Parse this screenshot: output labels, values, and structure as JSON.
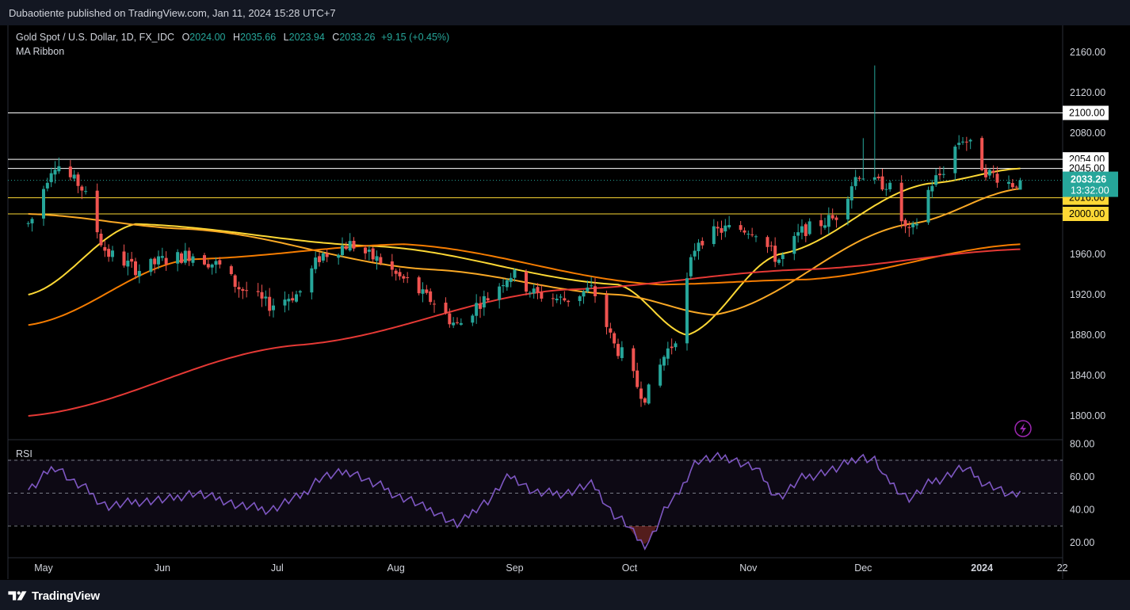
{
  "header": {
    "published": "Dubaotiente published on TradingView.com, Jan 11, 2024 15:28 UTC+7"
  },
  "legend": {
    "symbol": "Gold Spot / U.S. Dollar, 1D, FX_IDC",
    "open_label": "O",
    "open": "2024.00",
    "high_label": "H",
    "high": "2035.66",
    "low_label": "L",
    "low": "2023.94",
    "close_label": "C",
    "close": "2033.26",
    "change": "+9.15 (+0.45%)",
    "indicator": "MA Ribbon",
    "rsi_label": "RSI"
  },
  "price_badge": {
    "price": "2033.26",
    "countdown": "13:32:00"
  },
  "footer": {
    "brand": "TradingView"
  },
  "colors": {
    "up": "#26a69a",
    "down": "#ef5350",
    "ma20": "#fdd835",
    "ma50": "#f9a825",
    "ma100": "#f57c00",
    "ma200": "#e53935",
    "rsi": "#7e57c2",
    "bg": "#000000",
    "panel": "#131722"
  },
  "chart_data": [
    {
      "type": "candlestick",
      "title": "Gold Spot / U.S. Dollar, 1D, FX_IDC",
      "y_ticks": [
        1800,
        1840,
        1880,
        1920,
        1960,
        2000,
        2040,
        2080,
        2120,
        2160
      ],
      "y_tick_labels": [
        "1800.00",
        "1840.00",
        "1880.00",
        "1920.00",
        "1960.00",
        "2000.00",
        "2040.00",
        "2080.00",
        "2120.00",
        "2160.00"
      ],
      "x_tick_labels": [
        "May",
        "Jun",
        "Jul",
        "Aug",
        "Sep",
        "Oct",
        "Nov",
        "Dec",
        "2024",
        "22"
      ],
      "horizontal_levels": [
        {
          "value": 2100,
          "label": "2100.00",
          "color": "#ffffff"
        },
        {
          "value": 2054,
          "label": "2054.00",
          "color": "#ffffff"
        },
        {
          "value": 2045,
          "label": "2045.00",
          "color": "#ffffff"
        },
        {
          "value": 2016,
          "label": "2016.00",
          "color": "#fdd835"
        },
        {
          "value": 2000,
          "label": "2000.00",
          "color": "#fdd835"
        }
      ],
      "close_path": [
        [
          "2023-04-27",
          1990
        ],
        [
          "2023-05-04",
          2050
        ],
        [
          "2023-05-10",
          2030
        ],
        [
          "2023-05-18",
          1960
        ],
        [
          "2023-05-26",
          1945
        ],
        [
          "2023-06-02",
          1955
        ],
        [
          "2023-06-09",
          1960
        ],
        [
          "2023-06-15",
          1950
        ],
        [
          "2023-06-22",
          1925
        ],
        [
          "2023-06-29",
          1910
        ],
        [
          "2023-07-06",
          1920
        ],
        [
          "2023-07-13",
          1960
        ],
        [
          "2023-07-20",
          1970
        ],
        [
          "2023-07-27",
          1955
        ],
        [
          "2023-08-03",
          1935
        ],
        [
          "2023-08-10",
          1915
        ],
        [
          "2023-08-17",
          1890
        ],
        [
          "2023-08-24",
          1915
        ],
        [
          "2023-08-31",
          1940
        ],
        [
          "2023-09-07",
          1920
        ],
        [
          "2023-09-14",
          1915
        ],
        [
          "2023-09-21",
          1925
        ],
        [
          "2023-09-28",
          1865
        ],
        [
          "2023-10-05",
          1820
        ],
        [
          "2023-10-12",
          1870
        ],
        [
          "2023-10-19",
          1975
        ],
        [
          "2023-10-26",
          1985
        ],
        [
          "2023-11-02",
          1985
        ],
        [
          "2023-11-09",
          1955
        ],
        [
          "2023-11-16",
          1985
        ],
        [
          "2023-11-23",
          1995
        ],
        [
          "2023-11-30",
          2040
        ],
        [
          "2023-12-04",
          2030
        ],
        [
          "2023-12-07",
          2030
        ],
        [
          "2023-12-13",
          1980
        ],
        [
          "2023-12-20",
          2035
        ],
        [
          "2023-12-27",
          2075
        ],
        [
          "2024-01-03",
          2040
        ],
        [
          "2024-01-09",
          2030
        ],
        [
          "2024-01-11",
          2033.26
        ]
      ],
      "ma_ribbon": [
        {
          "points": [
            [
              "2023-04-27",
              1920
            ],
            [
              "2023-05-25",
              1990
            ],
            [
              "2023-07-27",
              1968
            ],
            [
              "2023-09-28",
              1930
            ],
            [
              "2023-10-16",
              1880
            ],
            [
              "2023-11-09",
              1960
            ],
            [
              "2023-12-18",
              2030
            ],
            [
              "2024-01-11",
              2045
            ]
          ]
        },
        {
          "points": [
            [
              "2023-04-27",
              2000
            ],
            [
              "2023-06-08",
              1985
            ],
            [
              "2023-08-10",
              1945
            ],
            [
              "2023-09-28",
              1920
            ],
            [
              "2023-10-23",
              1900
            ],
            [
              "2023-12-13",
              1990
            ],
            [
              "2024-01-11",
              2025
            ]
          ]
        },
        {
          "points": [
            [
              "2023-04-27",
              1890
            ],
            [
              "2023-06-08",
              1955
            ],
            [
              "2023-08-03",
              1970
            ],
            [
              "2023-10-09",
              1930
            ],
            [
              "2023-11-16",
              1935
            ],
            [
              "2024-01-11",
              1970
            ]
          ]
        },
        {
          "points": [
            [
              "2023-04-27",
              1800
            ],
            [
              "2023-07-06",
              1870
            ],
            [
              "2023-09-14",
              1925
            ],
            [
              "2023-11-16",
              1945
            ],
            [
              "2024-01-11",
              1965
            ]
          ]
        }
      ]
    },
    {
      "type": "line",
      "title": "RSI",
      "y_ticks": [
        20,
        40,
        60,
        80
      ],
      "y_tick_labels": [
        "20.00",
        "40.00",
        "60.00",
        "80.00"
      ],
      "band": [
        30,
        70
      ],
      "mid": 50,
      "points": [
        [
          "2023-04-27",
          52
        ],
        [
          "2023-05-04",
          66
        ],
        [
          "2023-05-10",
          55
        ],
        [
          "2023-05-18",
          42
        ],
        [
          "2023-05-26",
          45
        ],
        [
          "2023-06-02",
          46
        ],
        [
          "2023-06-09",
          50
        ],
        [
          "2023-06-15",
          47
        ],
        [
          "2023-06-22",
          42
        ],
        [
          "2023-06-29",
          40
        ],
        [
          "2023-07-06",
          47
        ],
        [
          "2023-07-13",
          60
        ],
        [
          "2023-07-20",
          63
        ],
        [
          "2023-07-27",
          55
        ],
        [
          "2023-08-03",
          47
        ],
        [
          "2023-08-10",
          40
        ],
        [
          "2023-08-17",
          31
        ],
        [
          "2023-08-24",
          44
        ],
        [
          "2023-08-31",
          60
        ],
        [
          "2023-09-07",
          50
        ],
        [
          "2023-09-14",
          50
        ],
        [
          "2023-09-21",
          55
        ],
        [
          "2023-09-28",
          35
        ],
        [
          "2023-10-05",
          19
        ],
        [
          "2023-10-12",
          45
        ],
        [
          "2023-10-19",
          70
        ],
        [
          "2023-10-26",
          72
        ],
        [
          "2023-11-02",
          66
        ],
        [
          "2023-11-09",
          48
        ],
        [
          "2023-11-16",
          60
        ],
        [
          "2023-11-23",
          64
        ],
        [
          "2023-11-30",
          72
        ],
        [
          "2023-12-04",
          70
        ],
        [
          "2023-12-07",
          58
        ],
        [
          "2023-12-13",
          47
        ],
        [
          "2023-12-20",
          58
        ],
        [
          "2023-12-27",
          65
        ],
        [
          "2024-01-03",
          55
        ],
        [
          "2024-01-09",
          48
        ],
        [
          "2024-01-11",
          50
        ]
      ]
    }
  ]
}
